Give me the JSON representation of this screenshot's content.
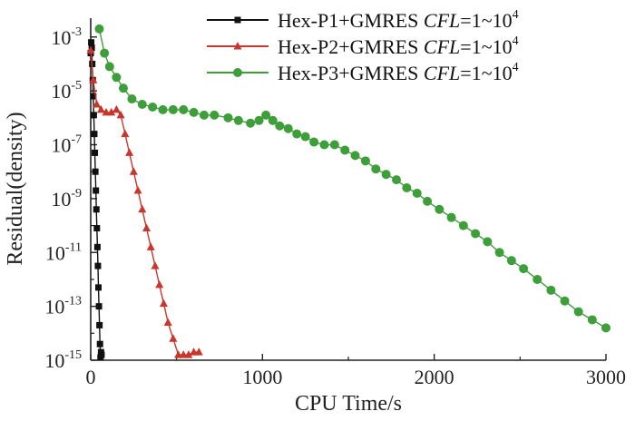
{
  "chart_data": {
    "type": "line",
    "title": "",
    "xlabel": "CPU Time/s",
    "ylabel": "Residual(density)",
    "xlim": [
      0,
      3000
    ],
    "ylim_log10": [
      -15,
      -2.3
    ],
    "y_scale": "log",
    "x_ticks": [
      {
        "value": 0,
        "label": "0"
      },
      {
        "value": 1000,
        "label": "1000"
      },
      {
        "value": 2000,
        "label": "2000"
      },
      {
        "value": 3000,
        "label": "3000"
      }
    ],
    "y_ticks": [
      {
        "exp": -3,
        "base": "10",
        "sup": "-3"
      },
      {
        "exp": -5,
        "base": "10",
        "sup": "-5"
      },
      {
        "exp": -7,
        "base": "10",
        "sup": "-7"
      },
      {
        "exp": -9,
        "base": "10",
        "sup": "-9"
      },
      {
        "exp": -11,
        "base": "10",
        "sup": "-11"
      },
      {
        "exp": -13,
        "base": "10",
        "sup": "-13"
      },
      {
        "exp": -15,
        "base": "10",
        "sup": "-15"
      }
    ],
    "legend_position": "top-right",
    "series": [
      {
        "name": "Hex-P1+GMRES",
        "name_cfl": "CFL",
        "name_tail": "=1~10",
        "name_sup": "4",
        "color": "#111111",
        "marker": "square",
        "points": [
          [
            0,
            -3.6
          ],
          [
            3,
            -3.2
          ],
          [
            6,
            -3.4
          ],
          [
            9,
            -4.0
          ],
          [
            12,
            -4.6
          ],
          [
            15,
            -5.2
          ],
          [
            18,
            -5.9
          ],
          [
            21,
            -6.6
          ],
          [
            24,
            -7.3
          ],
          [
            27,
            -8.0
          ],
          [
            30,
            -8.7
          ],
          [
            33,
            -9.4
          ],
          [
            36,
            -10.1
          ],
          [
            39,
            -10.8
          ],
          [
            42,
            -11.5
          ],
          [
            45,
            -12.3
          ],
          [
            48,
            -13.0
          ],
          [
            51,
            -13.7
          ],
          [
            54,
            -14.4
          ],
          [
            57,
            -14.9
          ],
          [
            60,
            -14.7
          ],
          [
            63,
            -14.8
          ]
        ]
      },
      {
        "name": "Hex-P2+GMRES",
        "name_cfl": "CFL",
        "name_tail": "=1~10",
        "name_sup": "4",
        "color": "#c8372d",
        "marker": "triangle",
        "points": [
          [
            0,
            -3.5
          ],
          [
            15,
            -4.6
          ],
          [
            35,
            -5.5
          ],
          [
            60,
            -5.7
          ],
          [
            90,
            -5.8
          ],
          [
            120,
            -5.8
          ],
          [
            150,
            -5.7
          ],
          [
            175,
            -5.9
          ],
          [
            200,
            -6.6
          ],
          [
            225,
            -7.3
          ],
          [
            250,
            -8.0
          ],
          [
            275,
            -8.7
          ],
          [
            300,
            -9.4
          ],
          [
            325,
            -10.1
          ],
          [
            350,
            -10.8
          ],
          [
            375,
            -11.5
          ],
          [
            400,
            -12.2
          ],
          [
            425,
            -12.9
          ],
          [
            450,
            -13.6
          ],
          [
            480,
            -14.2
          ],
          [
            510,
            -14.8
          ],
          [
            540,
            -14.8
          ],
          [
            570,
            -14.8
          ],
          [
            600,
            -14.7
          ],
          [
            630,
            -14.7
          ]
        ]
      },
      {
        "name": "Hex-P3+GMRES",
        "name_cfl": "CFL",
        "name_tail": "=1~10",
        "name_sup": "4",
        "color": "#3e9e3a",
        "marker": "circle",
        "points": [
          [
            50,
            -2.7
          ],
          [
            80,
            -3.6
          ],
          [
            110,
            -4.1
          ],
          [
            150,
            -4.5
          ],
          [
            190,
            -4.9
          ],
          [
            240,
            -5.3
          ],
          [
            300,
            -5.5
          ],
          [
            360,
            -5.6
          ],
          [
            420,
            -5.7
          ],
          [
            480,
            -5.7
          ],
          [
            540,
            -5.7
          ],
          [
            600,
            -5.8
          ],
          [
            660,
            -5.9
          ],
          [
            720,
            -5.9
          ],
          [
            800,
            -6.0
          ],
          [
            860,
            -6.1
          ],
          [
            930,
            -6.2
          ],
          [
            980,
            -6.1
          ],
          [
            1020,
            -5.9
          ],
          [
            1060,
            -6.1
          ],
          [
            1100,
            -6.3
          ],
          [
            1150,
            -6.4
          ],
          [
            1200,
            -6.6
          ],
          [
            1250,
            -6.7
          ],
          [
            1300,
            -6.9
          ],
          [
            1360,
            -7.0
          ],
          [
            1420,
            -7.0
          ],
          [
            1480,
            -7.2
          ],
          [
            1540,
            -7.4
          ],
          [
            1600,
            -7.6
          ],
          [
            1660,
            -7.9
          ],
          [
            1720,
            -8.1
          ],
          [
            1780,
            -8.3
          ],
          [
            1840,
            -8.6
          ],
          [
            1900,
            -8.8
          ],
          [
            1960,
            -9.1
          ],
          [
            2030,
            -9.4
          ],
          [
            2100,
            -9.7
          ],
          [
            2170,
            -10.0
          ],
          [
            2240,
            -10.3
          ],
          [
            2310,
            -10.6
          ],
          [
            2380,
            -11.0
          ],
          [
            2450,
            -11.3
          ],
          [
            2520,
            -11.6
          ],
          [
            2600,
            -12.0
          ],
          [
            2680,
            -12.4
          ],
          [
            2760,
            -12.8
          ],
          [
            2840,
            -13.2
          ],
          [
            2920,
            -13.5
          ],
          [
            3000,
            -13.8
          ]
        ]
      }
    ]
  }
}
